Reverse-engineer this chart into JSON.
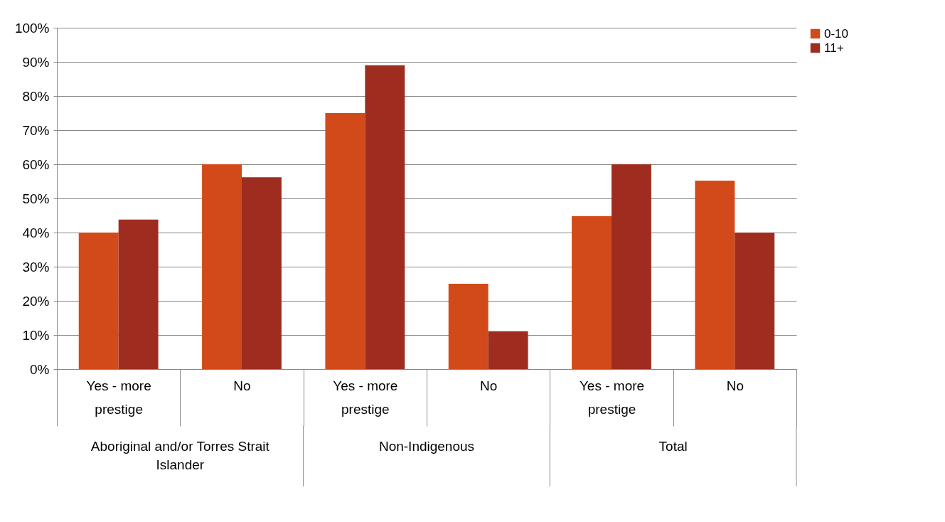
{
  "chart_data": {
    "type": "bar",
    "categories": [
      "Yes - more prestige",
      "No",
      "Yes - more prestige",
      "No",
      "Yes - more prestige",
      "No"
    ],
    "series": [
      {
        "name": "0-10",
        "color": "#d24a1a",
        "values": [
          40,
          60,
          75,
          25,
          44.8,
          55.2
        ]
      },
      {
        "name": "11+",
        "color": "#9e2d20",
        "values": [
          43.8,
          56.2,
          89,
          11.1,
          60,
          40
        ]
      }
    ],
    "ylim": [
      0,
      100
    ],
    "yticks": [
      {
        "value": 0,
        "label": "0%"
      },
      {
        "value": 10,
        "label": "10%"
      },
      {
        "value": 20,
        "label": "20%"
      },
      {
        "value": 30,
        "label": "30%"
      },
      {
        "value": 40,
        "label": "40%"
      },
      {
        "value": 50,
        "label": "50%"
      },
      {
        "value": 60,
        "label": "60%"
      },
      {
        "value": 70,
        "label": "70%"
      },
      {
        "value": 80,
        "label": "80%"
      },
      {
        "value": 90,
        "label": "90%"
      },
      {
        "value": 100,
        "label": "100%"
      }
    ],
    "annotations": [
      "Aboriginal and/or Torres Strait Islander",
      "Non-Indigenous",
      "Total"
    ],
    "grid": "y",
    "legend": "right"
  }
}
